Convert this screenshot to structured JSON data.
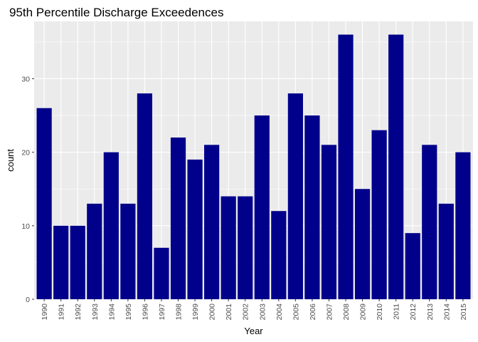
{
  "chart_data": {
    "type": "bar",
    "title": "95th Percentile Discharge Exceedences",
    "xlabel": "Year",
    "ylabel": "count",
    "categories": [
      "1990",
      "1991",
      "1992",
      "1993",
      "1994",
      "1995",
      "1996",
      "1997",
      "1998",
      "1999",
      "2000",
      "2001",
      "2002",
      "2003",
      "2004",
      "2005",
      "2006",
      "2007",
      "2008",
      "2009",
      "2010",
      "2011",
      "2012",
      "2013",
      "2014",
      "2015"
    ],
    "values": [
      26,
      10,
      10,
      13,
      20,
      13,
      28,
      7,
      22,
      19,
      21,
      14,
      14,
      25,
      12,
      28,
      25,
      21,
      36,
      15,
      23,
      36,
      9,
      21,
      13,
      20
    ],
    "ylim": [
      0,
      37.8
    ],
    "yticks": [
      0,
      10,
      20,
      30
    ],
    "grid": true,
    "colors": {
      "bar": "#00008B",
      "panel": "#EBEBEB",
      "grid": "#FFFFFF"
    }
  }
}
